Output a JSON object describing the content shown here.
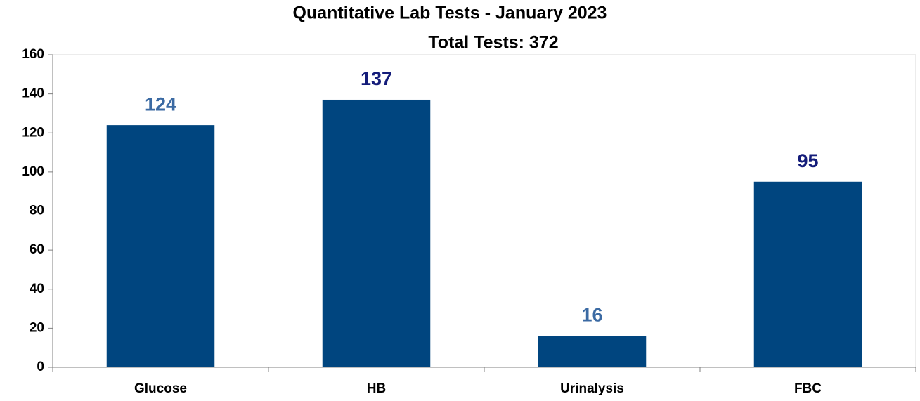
{
  "chart_data": {
    "type": "bar",
    "title": "Quantitative Lab Tests - January 2023",
    "subtitle": "Total Tests: 372",
    "categories": [
      "Glucose",
      "HB",
      "Urinalysis",
      "FBC"
    ],
    "values": [
      124,
      137,
      16,
      95
    ],
    "color": "#00457f",
    "label_colors": [
      "#3b6aa3",
      "#141c7a",
      "#3b6aa3",
      "#141c7a"
    ],
    "ylim": [
      0,
      160
    ],
    "yticks": [
      0,
      20,
      40,
      60,
      80,
      100,
      120,
      140,
      160
    ],
    "grid": false
  }
}
